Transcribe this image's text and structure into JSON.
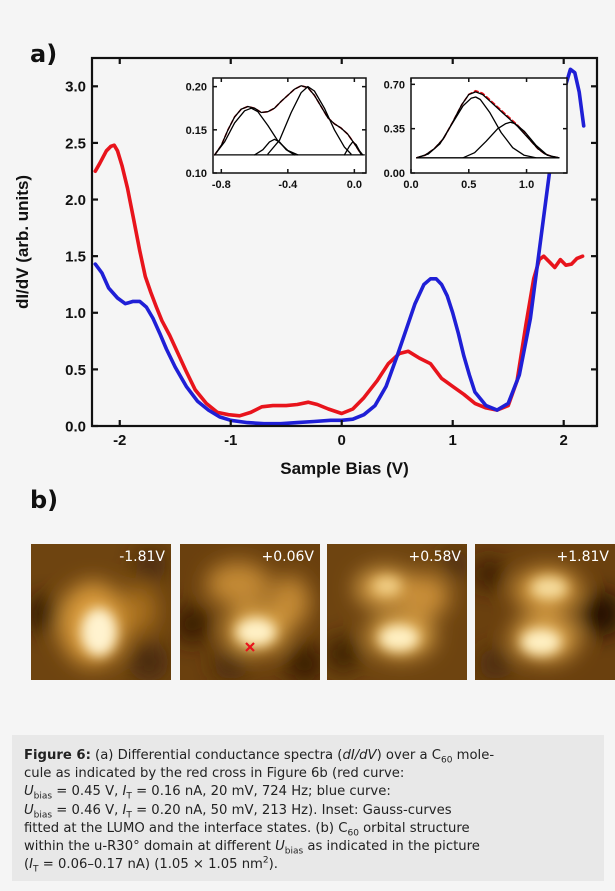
{
  "figure": {
    "panel_a_label": "a)",
    "panel_b_label": "b)",
    "caption": {
      "head": "Figure 6:",
      "line1": " (a) Differential conductance spectra (",
      "line1_i": "dI/dV",
      "line1_b": ") over a C",
      "line1_sub": "60",
      "line1_c": " mole-",
      "line2": "cule as indicated by the red cross in Figure 6b (red curve:",
      "u": "U",
      "bias": "bias",
      "i": "I",
      "t": "T",
      "line3_a": " = 0.45 V, ",
      "line3_b": " = 0.16 nA, 20 mV, 724 Hz; blue curve:",
      "line4_a": " = 0.46 V, ",
      "line4_b": " = 0.20 nA, 50 mV, 213 Hz). Inset: Gauss-curves",
      "line5": "fitted at the LUMO and the interface states. (b) C",
      "line5_sub": "60",
      "line5_b": " orbital structure",
      "line6": "within the u-R30° domain at different ",
      "line6_b": " as indicated in the picture",
      "line7_a": "(",
      "line7_b": " = 0.06–0.17 nA) (1.05 × 1.05 nm",
      "line7_sup": "2",
      "line7_c": ")."
    }
  },
  "stm_images": [
    {
      "label": "-1.81V"
    },
    {
      "label": "+0.06V"
    },
    {
      "label": "+0.58V"
    },
    {
      "label": "+1.81V"
    }
  ],
  "colors": {
    "red_curve": "#e8141c",
    "blue_curve": "#1f1fd6",
    "stm_dark": "#3a1d06",
    "stm_mid": "#b07018",
    "stm_bright": "#fff6d8",
    "marker": "#e8141c"
  },
  "chart_data": [
    {
      "type": "line",
      "xlabel": "Sample Bias (V)",
      "ylabel": "dI/dV (arb. units)",
      "xlim": [
        -2.25,
        2.3
      ],
      "ylim": [
        0.0,
        3.25
      ],
      "xticks": [
        -2,
        -1,
        0,
        1,
        2
      ],
      "xtick_labels": [
        "-2",
        "-1",
        "0",
        "1",
        "2"
      ],
      "yticks": [
        0.0,
        0.5,
        1.0,
        1.5,
        2.0,
        2.5,
        3.0
      ],
      "ytick_labels": [
        "0.0",
        "0.5",
        "1.0",
        "1.5",
        "2.0",
        "2.5",
        "3.0"
      ],
      "series": [
        {
          "color": "#e8141c",
          "x": [
            -2.22,
            -2.18,
            -2.12,
            -2.08,
            -2.05,
            -2.02,
            -1.98,
            -1.93,
            -1.88,
            -1.82,
            -1.77,
            -1.72,
            -1.67,
            -1.62,
            -1.55,
            -1.48,
            -1.4,
            -1.32,
            -1.22,
            -1.12,
            -1.02,
            -0.92,
            -0.82,
            -0.72,
            -0.62,
            -0.5,
            -0.4,
            -0.3,
            -0.22,
            -0.12,
            0.0,
            0.1,
            0.2,
            0.32,
            0.42,
            0.52,
            0.6,
            0.7,
            0.8,
            0.9,
            1.0,
            1.1,
            1.2,
            1.3,
            1.4,
            1.5,
            1.58,
            1.66,
            1.73,
            1.78,
            1.82,
            1.87,
            1.92,
            1.97,
            2.02,
            2.07,
            2.12,
            2.17
          ],
          "y": [
            2.25,
            2.32,
            2.43,
            2.47,
            2.48,
            2.43,
            2.3,
            2.1,
            1.85,
            1.55,
            1.32,
            1.18,
            1.05,
            0.93,
            0.8,
            0.65,
            0.48,
            0.32,
            0.2,
            0.12,
            0.1,
            0.09,
            0.12,
            0.17,
            0.18,
            0.18,
            0.19,
            0.21,
            0.19,
            0.15,
            0.11,
            0.15,
            0.25,
            0.4,
            0.55,
            0.64,
            0.66,
            0.6,
            0.55,
            0.42,
            0.35,
            0.28,
            0.2,
            0.16,
            0.14,
            0.18,
            0.4,
            0.9,
            1.3,
            1.47,
            1.5,
            1.45,
            1.4,
            1.47,
            1.42,
            1.43,
            1.48,
            1.5
          ]
        },
        {
          "color": "#1f1fd6",
          "x": [
            -2.22,
            -2.16,
            -2.1,
            -2.02,
            -1.95,
            -1.88,
            -1.82,
            -1.76,
            -1.7,
            -1.64,
            -1.58,
            -1.5,
            -1.4,
            -1.3,
            -1.2,
            -1.1,
            -1.0,
            -0.85,
            -0.7,
            -0.55,
            -0.4,
            -0.25,
            -0.1,
            0.0,
            0.1,
            0.2,
            0.3,
            0.4,
            0.5,
            0.58,
            0.66,
            0.74,
            0.8,
            0.85,
            0.9,
            0.95,
            1.0,
            1.05,
            1.1,
            1.15,
            1.2,
            1.3,
            1.4,
            1.5,
            1.6,
            1.7,
            1.8,
            1.9,
            2.0,
            2.06,
            2.1,
            2.14,
            2.18
          ],
          "y": [
            1.43,
            1.35,
            1.22,
            1.13,
            1.08,
            1.1,
            1.1,
            1.05,
            0.95,
            0.82,
            0.68,
            0.52,
            0.35,
            0.22,
            0.14,
            0.08,
            0.05,
            0.03,
            0.02,
            0.02,
            0.03,
            0.04,
            0.05,
            0.05,
            0.06,
            0.1,
            0.18,
            0.35,
            0.62,
            0.85,
            1.08,
            1.25,
            1.3,
            1.3,
            1.25,
            1.15,
            1.0,
            0.82,
            0.62,
            0.45,
            0.3,
            0.18,
            0.14,
            0.2,
            0.45,
            0.95,
            1.7,
            2.45,
            2.95,
            3.15,
            3.12,
            2.95,
            2.65
          ]
        }
      ]
    },
    {
      "type": "line",
      "xlim": [
        -0.85,
        0.07
      ],
      "ylim": [
        0.1,
        0.21
      ],
      "xticks": [
        -0.8,
        -0.4,
        0.0
      ],
      "xtick_labels": [
        "-0.8",
        "-0.4",
        "0.0"
      ],
      "yticks": [
        0.1,
        0.15,
        0.2
      ],
      "ytick_labels": [
        "0.10",
        "0.15",
        "0.20"
      ],
      "series": [
        {
          "style": "dashed",
          "color": "#e8141c",
          "x": [
            -0.84,
            -0.8,
            -0.76,
            -0.72,
            -0.68,
            -0.64,
            -0.6,
            -0.56,
            -0.52,
            -0.48,
            -0.44,
            -0.4,
            -0.36,
            -0.32,
            -0.28,
            -0.24,
            -0.2,
            -0.16,
            -0.12,
            -0.08,
            -0.04,
            0.0,
            0.04
          ],
          "y": [
            0.121,
            0.132,
            0.15,
            0.165,
            0.174,
            0.177,
            0.175,
            0.17,
            0.171,
            0.175,
            0.183,
            0.19,
            0.197,
            0.201,
            0.199,
            0.19,
            0.177,
            0.164,
            0.157,
            0.152,
            0.145,
            0.134,
            0.122
          ]
        },
        {
          "style": "solid",
          "color": "#000000",
          "x": [
            -0.84,
            -0.8,
            -0.76,
            -0.72,
            -0.68,
            -0.64,
            -0.6,
            -0.56,
            -0.52,
            -0.48,
            -0.44,
            -0.4,
            -0.36,
            -0.32,
            -0.28,
            -0.24,
            -0.2,
            -0.16,
            -0.12,
            -0.08,
            -0.04,
            0.0,
            0.04
          ],
          "y": [
            0.121,
            0.132,
            0.15,
            0.165,
            0.174,
            0.177,
            0.175,
            0.17,
            0.171,
            0.175,
            0.183,
            0.19,
            0.197,
            0.201,
            0.199,
            0.19,
            0.177,
            0.164,
            0.157,
            0.152,
            0.145,
            0.134,
            0.122
          ]
        },
        {
          "style": "solid",
          "color": "#000000",
          "x": [
            -0.84,
            -0.78,
            -0.72,
            -0.66,
            -0.62,
            -0.58,
            -0.52,
            -0.46,
            -0.4,
            -0.34
          ],
          "y": [
            0.121,
            0.136,
            0.158,
            0.172,
            0.175,
            0.171,
            0.155,
            0.137,
            0.126,
            0.121
          ]
        },
        {
          "style": "solid",
          "color": "#000000",
          "x": [
            -0.6,
            -0.55,
            -0.51,
            -0.48,
            -0.45,
            -0.41,
            -0.36
          ],
          "y": [
            0.121,
            0.127,
            0.136,
            0.139,
            0.136,
            0.127,
            0.121
          ]
        },
        {
          "style": "solid",
          "color": "#000000",
          "x": [
            -0.52,
            -0.45,
            -0.38,
            -0.32,
            -0.28,
            -0.24,
            -0.18,
            -0.12,
            -0.06,
            -0.02
          ],
          "y": [
            0.122,
            0.138,
            0.17,
            0.193,
            0.2,
            0.195,
            0.175,
            0.15,
            0.13,
            0.122
          ]
        },
        {
          "style": "solid",
          "color": "#000000",
          "x": [
            -0.06,
            -0.03,
            -0.01,
            0.01,
            0.03,
            0.05
          ],
          "y": [
            0.121,
            0.131,
            0.136,
            0.133,
            0.126,
            0.121
          ]
        },
        {
          "style": "solid",
          "color": "#000000",
          "x": [
            -0.84,
            0.06
          ],
          "y": [
            0.121,
            0.121
          ]
        }
      ]
    },
    {
      "type": "line",
      "xlim": [
        0.0,
        1.35
      ],
      "ylim": [
        0.0,
        0.75
      ],
      "xticks": [
        0.0,
        0.5,
        1.0
      ],
      "xtick_labels": [
        "0.0",
        "0.5",
        "1.0"
      ],
      "yticks": [
        0.0,
        0.35,
        0.7
      ],
      "ytick_labels": [
        "0.00",
        "0.35",
        "0.70"
      ],
      "series": [
        {
          "style": "dashed",
          "color": "#e8141c",
          "x": [
            0.05,
            0.12,
            0.2,
            0.28,
            0.36,
            0.44,
            0.5,
            0.56,
            0.62,
            0.68,
            0.74,
            0.8,
            0.86,
            0.92,
            0.98,
            1.04,
            1.1,
            1.16,
            1.22,
            1.28
          ],
          "y": [
            0.12,
            0.14,
            0.19,
            0.27,
            0.4,
            0.54,
            0.62,
            0.65,
            0.63,
            0.58,
            0.53,
            0.48,
            0.43,
            0.38,
            0.32,
            0.25,
            0.19,
            0.15,
            0.13,
            0.12
          ]
        },
        {
          "style": "solid",
          "color": "#000000",
          "x": [
            0.05,
            0.12,
            0.2,
            0.28,
            0.36,
            0.44,
            0.5,
            0.56,
            0.62,
            0.68,
            0.74,
            0.8,
            0.86,
            0.92,
            0.98,
            1.04,
            1.1,
            1.16,
            1.22,
            1.28
          ],
          "y": [
            0.12,
            0.14,
            0.19,
            0.27,
            0.4,
            0.54,
            0.62,
            0.64,
            0.62,
            0.57,
            0.52,
            0.47,
            0.42,
            0.37,
            0.31,
            0.25,
            0.19,
            0.15,
            0.13,
            0.12
          ]
        },
        {
          "style": "solid",
          "color": "#000000",
          "x": [
            0.05,
            0.15,
            0.25,
            0.35,
            0.45,
            0.52,
            0.56,
            0.6,
            0.68,
            0.78,
            0.88,
            0.98,
            1.08
          ],
          "y": [
            0.12,
            0.15,
            0.23,
            0.38,
            0.53,
            0.59,
            0.6,
            0.58,
            0.48,
            0.32,
            0.2,
            0.14,
            0.12
          ]
        },
        {
          "style": "solid",
          "color": "#000000",
          "x": [
            0.45,
            0.55,
            0.65,
            0.75,
            0.82,
            0.86,
            0.9,
            0.98,
            1.08,
            1.18,
            1.28
          ],
          "y": [
            0.12,
            0.16,
            0.25,
            0.35,
            0.39,
            0.4,
            0.39,
            0.33,
            0.22,
            0.14,
            0.12
          ]
        },
        {
          "style": "solid",
          "color": "#000000",
          "x": [
            0.05,
            1.28
          ],
          "y": [
            0.12,
            0.12
          ]
        }
      ]
    }
  ]
}
